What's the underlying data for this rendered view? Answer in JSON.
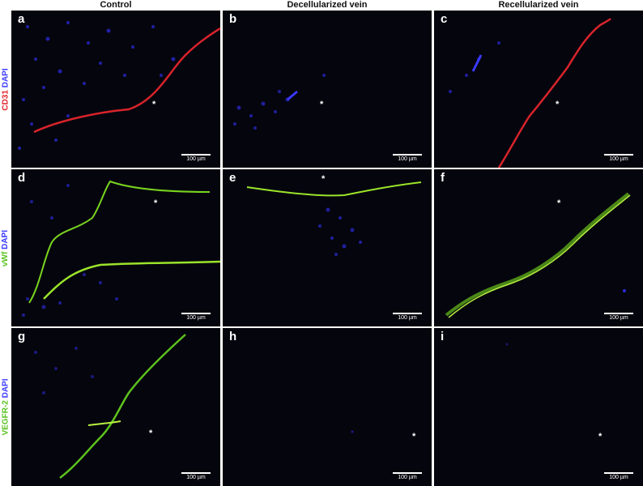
{
  "columns": [
    "Control",
    "Decellularized vein",
    "Recellularized vein"
  ],
  "rows": [
    {
      "marker": "CD31",
      "marker_color": "#e0242a",
      "stain": "DAPI",
      "stain_color": "#3b3bff"
    },
    {
      "marker": "vWf",
      "marker_color": "#58c21f",
      "stain": "DAPI",
      "stain_color": "#3b3bff"
    },
    {
      "marker": "VEGFR-2",
      "marker_color": "#58c21f",
      "stain": "DAPI",
      "stain_color": "#3b3bff"
    }
  ],
  "panels": [
    {
      "letter": "a",
      "asterisk": "*",
      "scale": "100 µm"
    },
    {
      "letter": "b",
      "asterisk": "*",
      "scale": "100 µm"
    },
    {
      "letter": "c",
      "asterisk": "*",
      "scale": "100 µm"
    },
    {
      "letter": "d",
      "asterisk": "*",
      "scale": "100 µm"
    },
    {
      "letter": "e",
      "asterisk": "*",
      "scale": "100 µm"
    },
    {
      "letter": "f",
      "asterisk": "*",
      "scale": "100 µm"
    },
    {
      "letter": "g",
      "asterisk": "*",
      "scale": "100 µm"
    },
    {
      "letter": "h",
      "asterisk": "*",
      "scale": "100 µm"
    },
    {
      "letter": "i",
      "asterisk": "*",
      "scale": "100 µm"
    }
  ]
}
